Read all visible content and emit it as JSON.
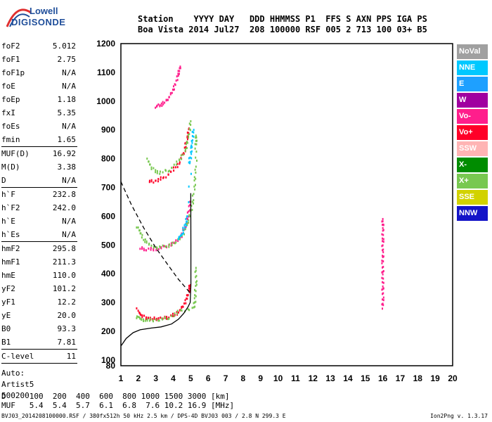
{
  "header": {
    "line1": "Station    YYYY DAY   DDD HHMMSS P1  FFS S AXN PPS IGA PS",
    "line2": "Boa Vista 2014 Jul27  208 100000 RSF 005 2 713 100 03+ B5"
  },
  "logo": {
    "line1": "Lowell",
    "line2": "DIGISONDE"
  },
  "params_group1": [
    {
      "name": "foF2",
      "value": "5.012"
    },
    {
      "name": "foF1",
      "value": "2.75"
    },
    {
      "name": "foF1p",
      "value": "N/A"
    },
    {
      "name": "foE",
      "value": "N/A"
    },
    {
      "name": "foEp",
      "value": "1.18"
    },
    {
      "name": "fxI",
      "value": "5.35"
    },
    {
      "name": "foEs",
      "value": "N/A"
    },
    {
      "name": "fmin",
      "value": "1.65"
    }
  ],
  "params_group2": [
    {
      "name": "MUF(D)",
      "value": "16.92"
    },
    {
      "name": "M(D)",
      "value": "3.38"
    },
    {
      "name": "D",
      "value": "N/A"
    }
  ],
  "params_group3": [
    {
      "name": "h`F",
      "value": "232.8"
    },
    {
      "name": "h`F2",
      "value": "242.0"
    },
    {
      "name": "h`E",
      "value": "N/A"
    },
    {
      "name": "h`Es",
      "value": "N/A"
    }
  ],
  "params_group4": [
    {
      "name": "hmF2",
      "value": "295.8"
    },
    {
      "name": "hmF1",
      "value": "211.3"
    },
    {
      "name": "hmE",
      "value": "110.0"
    },
    {
      "name": "yF2",
      "value": "101.2"
    },
    {
      "name": "yF1",
      "value": "12.2"
    },
    {
      "name": "yE",
      "value": "20.0"
    },
    {
      "name": "B0",
      "value": "93.3"
    },
    {
      "name": "B1",
      "value": "7.81"
    }
  ],
  "params_group5": [
    {
      "name": "C-level",
      "value": "11"
    }
  ],
  "auto": {
    "line1": "Auto:",
    "line2": "Artist5",
    "line3": "500200"
  },
  "dmuf": {
    "line1": "D     100  200  400  600  800 1000 1500 3000 [km]",
    "line2": "MUF   5.4  5.4  5.7  6.1  6.8  7.6 10.2 16.9 [MHz]"
  },
  "footer": {
    "left": "BVJ03_2014208100000.RSF / 380fx512h 50 kHz 2.5 km / DPS-4D BVJ03 003 / 2.8 N 299.3 E",
    "right": "Ion2Png v. 1.3.17"
  },
  "legend": [
    {
      "label": "NoVal",
      "color": "#a0a0a0"
    },
    {
      "label": "NNE",
      "color": "#00c8ff"
    },
    {
      "label": "E",
      "color": "#1ea0ff"
    },
    {
      "label": "W",
      "color": "#a000a0"
    },
    {
      "label": "Vo-",
      "color": "#ff1e8c"
    },
    {
      "label": "Vo+",
      "color": "#ff0028"
    },
    {
      "label": "SSW",
      "color": "#ffb4b4"
    },
    {
      "label": "X-",
      "color": "#008c00"
    },
    {
      "label": "X+",
      "color": "#78c850"
    },
    {
      "label": "SSE",
      "color": "#d2d200"
    },
    {
      "label": "NNW",
      "color": "#1414c8"
    }
  ],
  "chart_data": {
    "type": "scatter",
    "xlabel": "",
    "ylabel": "",
    "xlim": [
      1,
      20
    ],
    "ylim": [
      80,
      1200
    ],
    "x_ticks": [
      1,
      2,
      3,
      4,
      5,
      6,
      7,
      8,
      9,
      10,
      11,
      12,
      13,
      14,
      15,
      16,
      17,
      18,
      19,
      20
    ],
    "y_ticks": [
      80,
      100,
      200,
      300,
      400,
      500,
      600,
      700,
      800,
      900,
      1000,
      1100,
      1200
    ],
    "grid": true,
    "series": [
      {
        "color": "#ff0028",
        "points": [
          [
            1.95,
            275
          ],
          [
            2.2,
            252
          ],
          [
            2.6,
            244
          ],
          [
            3.0,
            243
          ],
          [
            3.4,
            245
          ],
          [
            3.8,
            250
          ],
          [
            4.2,
            262
          ],
          [
            4.5,
            280
          ],
          [
            4.75,
            310
          ],
          [
            4.9,
            340
          ],
          [
            4.98,
            360
          ]
        ]
      },
      {
        "color": "#ff1e8c",
        "points": [
          [
            2.1,
            488
          ],
          [
            2.5,
            484
          ],
          [
            3.0,
            486
          ],
          [
            3.5,
            492
          ],
          [
            4.0,
            505
          ],
          [
            4.4,
            525
          ],
          [
            4.7,
            560
          ],
          [
            4.85,
            600
          ],
          [
            4.95,
            650
          ]
        ]
      },
      {
        "color": "#ff0028",
        "points": [
          [
            2.6,
            720
          ],
          [
            3.0,
            722
          ],
          [
            3.5,
            735
          ],
          [
            4.0,
            760
          ],
          [
            4.4,
            790
          ],
          [
            4.65,
            830
          ],
          [
            4.8,
            870
          ],
          [
            4.9,
            905
          ]
        ]
      },
      {
        "color": "#ff1e8c",
        "points": [
          [
            3.0,
            980
          ],
          [
            3.3,
            988
          ],
          [
            3.6,
            1000
          ],
          [
            3.9,
            1025
          ],
          [
            4.1,
            1055
          ],
          [
            4.3,
            1095
          ],
          [
            4.4,
            1120
          ]
        ]
      },
      {
        "color": "#78c850",
        "points": [
          [
            1.9,
            250
          ],
          [
            2.2,
            240
          ],
          [
            2.6,
            238
          ],
          [
            3.2,
            240
          ],
          [
            3.8,
            248
          ],
          [
            4.4,
            270
          ],
          [
            5.2,
            280
          ],
          [
            5.25,
            320
          ],
          [
            5.3,
            370
          ],
          [
            5.3,
            420
          ]
        ]
      },
      {
        "color": "#78c850",
        "points": [
          [
            1.95,
            565
          ],
          [
            2.2,
            530
          ],
          [
            2.5,
            505
          ],
          [
            3.0,
            490
          ],
          [
            3.6,
            495
          ],
          [
            4.2,
            510
          ],
          [
            4.6,
            540
          ],
          [
            4.9,
            590
          ],
          [
            5.1,
            640
          ],
          [
            5.2,
            700
          ],
          [
            5.3,
            760
          ],
          [
            5.3,
            850
          ],
          [
            5.3,
            880
          ]
        ]
      },
      {
        "color": "#78c850",
        "points": [
          [
            2.5,
            800
          ],
          [
            2.8,
            765
          ],
          [
            3.2,
            750
          ],
          [
            3.8,
            762
          ],
          [
            4.3,
            790
          ],
          [
            4.7,
            830
          ],
          [
            4.9,
            880
          ],
          [
            5.0,
            930
          ]
        ]
      },
      {
        "color": "#00c8ff",
        "points": [
          [
            4.9,
            780
          ],
          [
            5.0,
            820
          ],
          [
            5.1,
            860
          ],
          [
            5.15,
            900
          ],
          [
            4.8,
            600
          ],
          [
            4.7,
            570
          ],
          [
            4.5,
            540
          ],
          [
            4.3,
            520
          ]
        ]
      },
      {
        "color": "#ff1e8c",
        "points": [
          [
            16.0,
            280
          ],
          [
            16.0,
            320
          ],
          [
            16.0,
            360
          ],
          [
            16.0,
            400
          ],
          [
            16.0,
            440
          ],
          [
            16.0,
            480
          ],
          [
            16.0,
            520
          ],
          [
            16.0,
            560
          ],
          [
            16.0,
            590
          ]
        ]
      }
    ],
    "profile_curve": [
      [
        1.02,
        150
      ],
      [
        1.3,
        175
      ],
      [
        1.7,
        195
      ],
      [
        2.1,
        205
      ],
      [
        2.75,
        211
      ],
      [
        3.3,
        215
      ],
      [
        3.9,
        225
      ],
      [
        4.3,
        242
      ],
      [
        4.6,
        262
      ],
      [
        4.85,
        285
      ],
      [
        4.97,
        300
      ],
      [
        5.01,
        360
      ],
      [
        5.01,
        500
      ],
      [
        5.0,
        680
      ]
    ],
    "dashed_line": [
      [
        1,
        720
      ],
      [
        1.6,
        640
      ],
      [
        2.3,
        560
      ],
      [
        3.0,
        490
      ],
      [
        3.7,
        430
      ],
      [
        4.3,
        380
      ],
      [
        4.8,
        345
      ],
      [
        5.0,
        330
      ]
    ]
  }
}
